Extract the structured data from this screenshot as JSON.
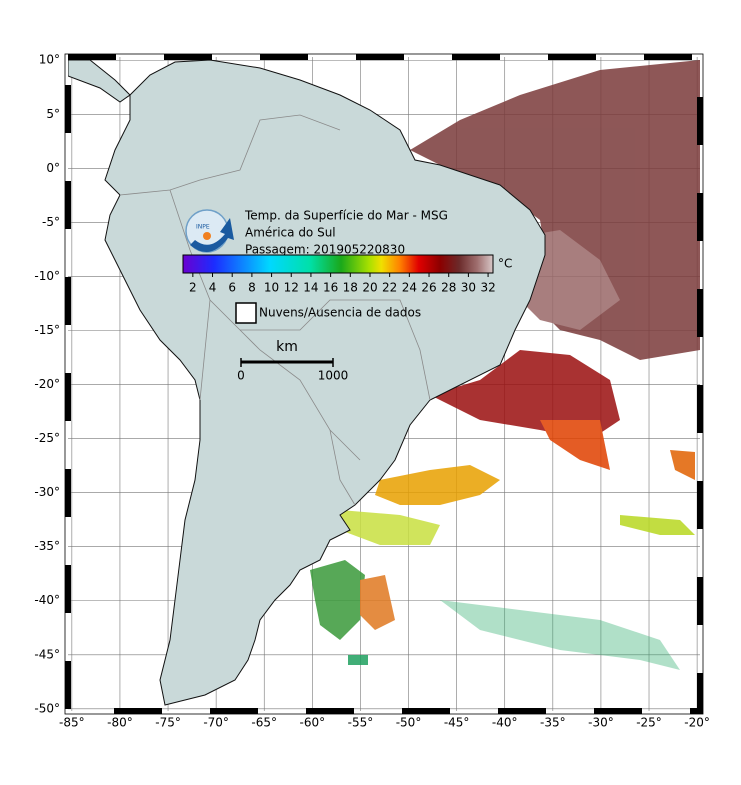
{
  "map": {
    "title": "Temp. da Superfície do Mar - MSG",
    "region": "América do Sul",
    "pass": "Passagem: 201905220830",
    "logo_text": "INPE",
    "xlim": [
      -85.4,
      -19.7
    ],
    "ylim": [
      -50.2,
      10.3
    ],
    "xticks": [
      {
        "value": -85,
        "label": "-85°"
      },
      {
        "value": -80,
        "label": "-80°"
      },
      {
        "value": -75,
        "label": "-75°"
      },
      {
        "value": -70,
        "label": "-70°"
      },
      {
        "value": -65,
        "label": "-65°"
      },
      {
        "value": -60,
        "label": "-60°"
      },
      {
        "value": -55,
        "label": "-55°"
      },
      {
        "value": -50,
        "label": "-50°"
      },
      {
        "value": -45,
        "label": "-45°"
      },
      {
        "value": -40,
        "label": "-40°"
      },
      {
        "value": -35,
        "label": "-35°"
      },
      {
        "value": -30,
        "label": "-30°"
      },
      {
        "value": -25,
        "label": "-25°"
      },
      {
        "value": -20,
        "label": "-20°"
      }
    ],
    "yticks": [
      {
        "value": 10,
        "label": "10°"
      },
      {
        "value": 5,
        "label": "5°"
      },
      {
        "value": 0,
        "label": "0°"
      },
      {
        "value": -5,
        "label": "-5°"
      },
      {
        "value": -10,
        "label": "-10°"
      },
      {
        "value": -15,
        "label": "-15°"
      },
      {
        "value": -20,
        "label": "-20°"
      },
      {
        "value": -25,
        "label": "-25°"
      },
      {
        "value": -30,
        "label": "-30°"
      },
      {
        "value": -35,
        "label": "-35°"
      },
      {
        "value": -40,
        "label": "-40°"
      },
      {
        "value": -45,
        "label": "-45°"
      },
      {
        "value": -50,
        "label": "-50°"
      }
    ],
    "colorbar": {
      "unit": "°C",
      "range": [
        1,
        32.5
      ],
      "ticks": [
        2,
        4,
        6,
        8,
        10,
        12,
        14,
        16,
        18,
        20,
        22,
        24,
        26,
        28,
        30,
        32
      ]
    },
    "legend": "Nuvens/Ausencia de dados",
    "scale_bar": {
      "unit": "km",
      "ticks": [
        0,
        1000
      ]
    }
  }
}
